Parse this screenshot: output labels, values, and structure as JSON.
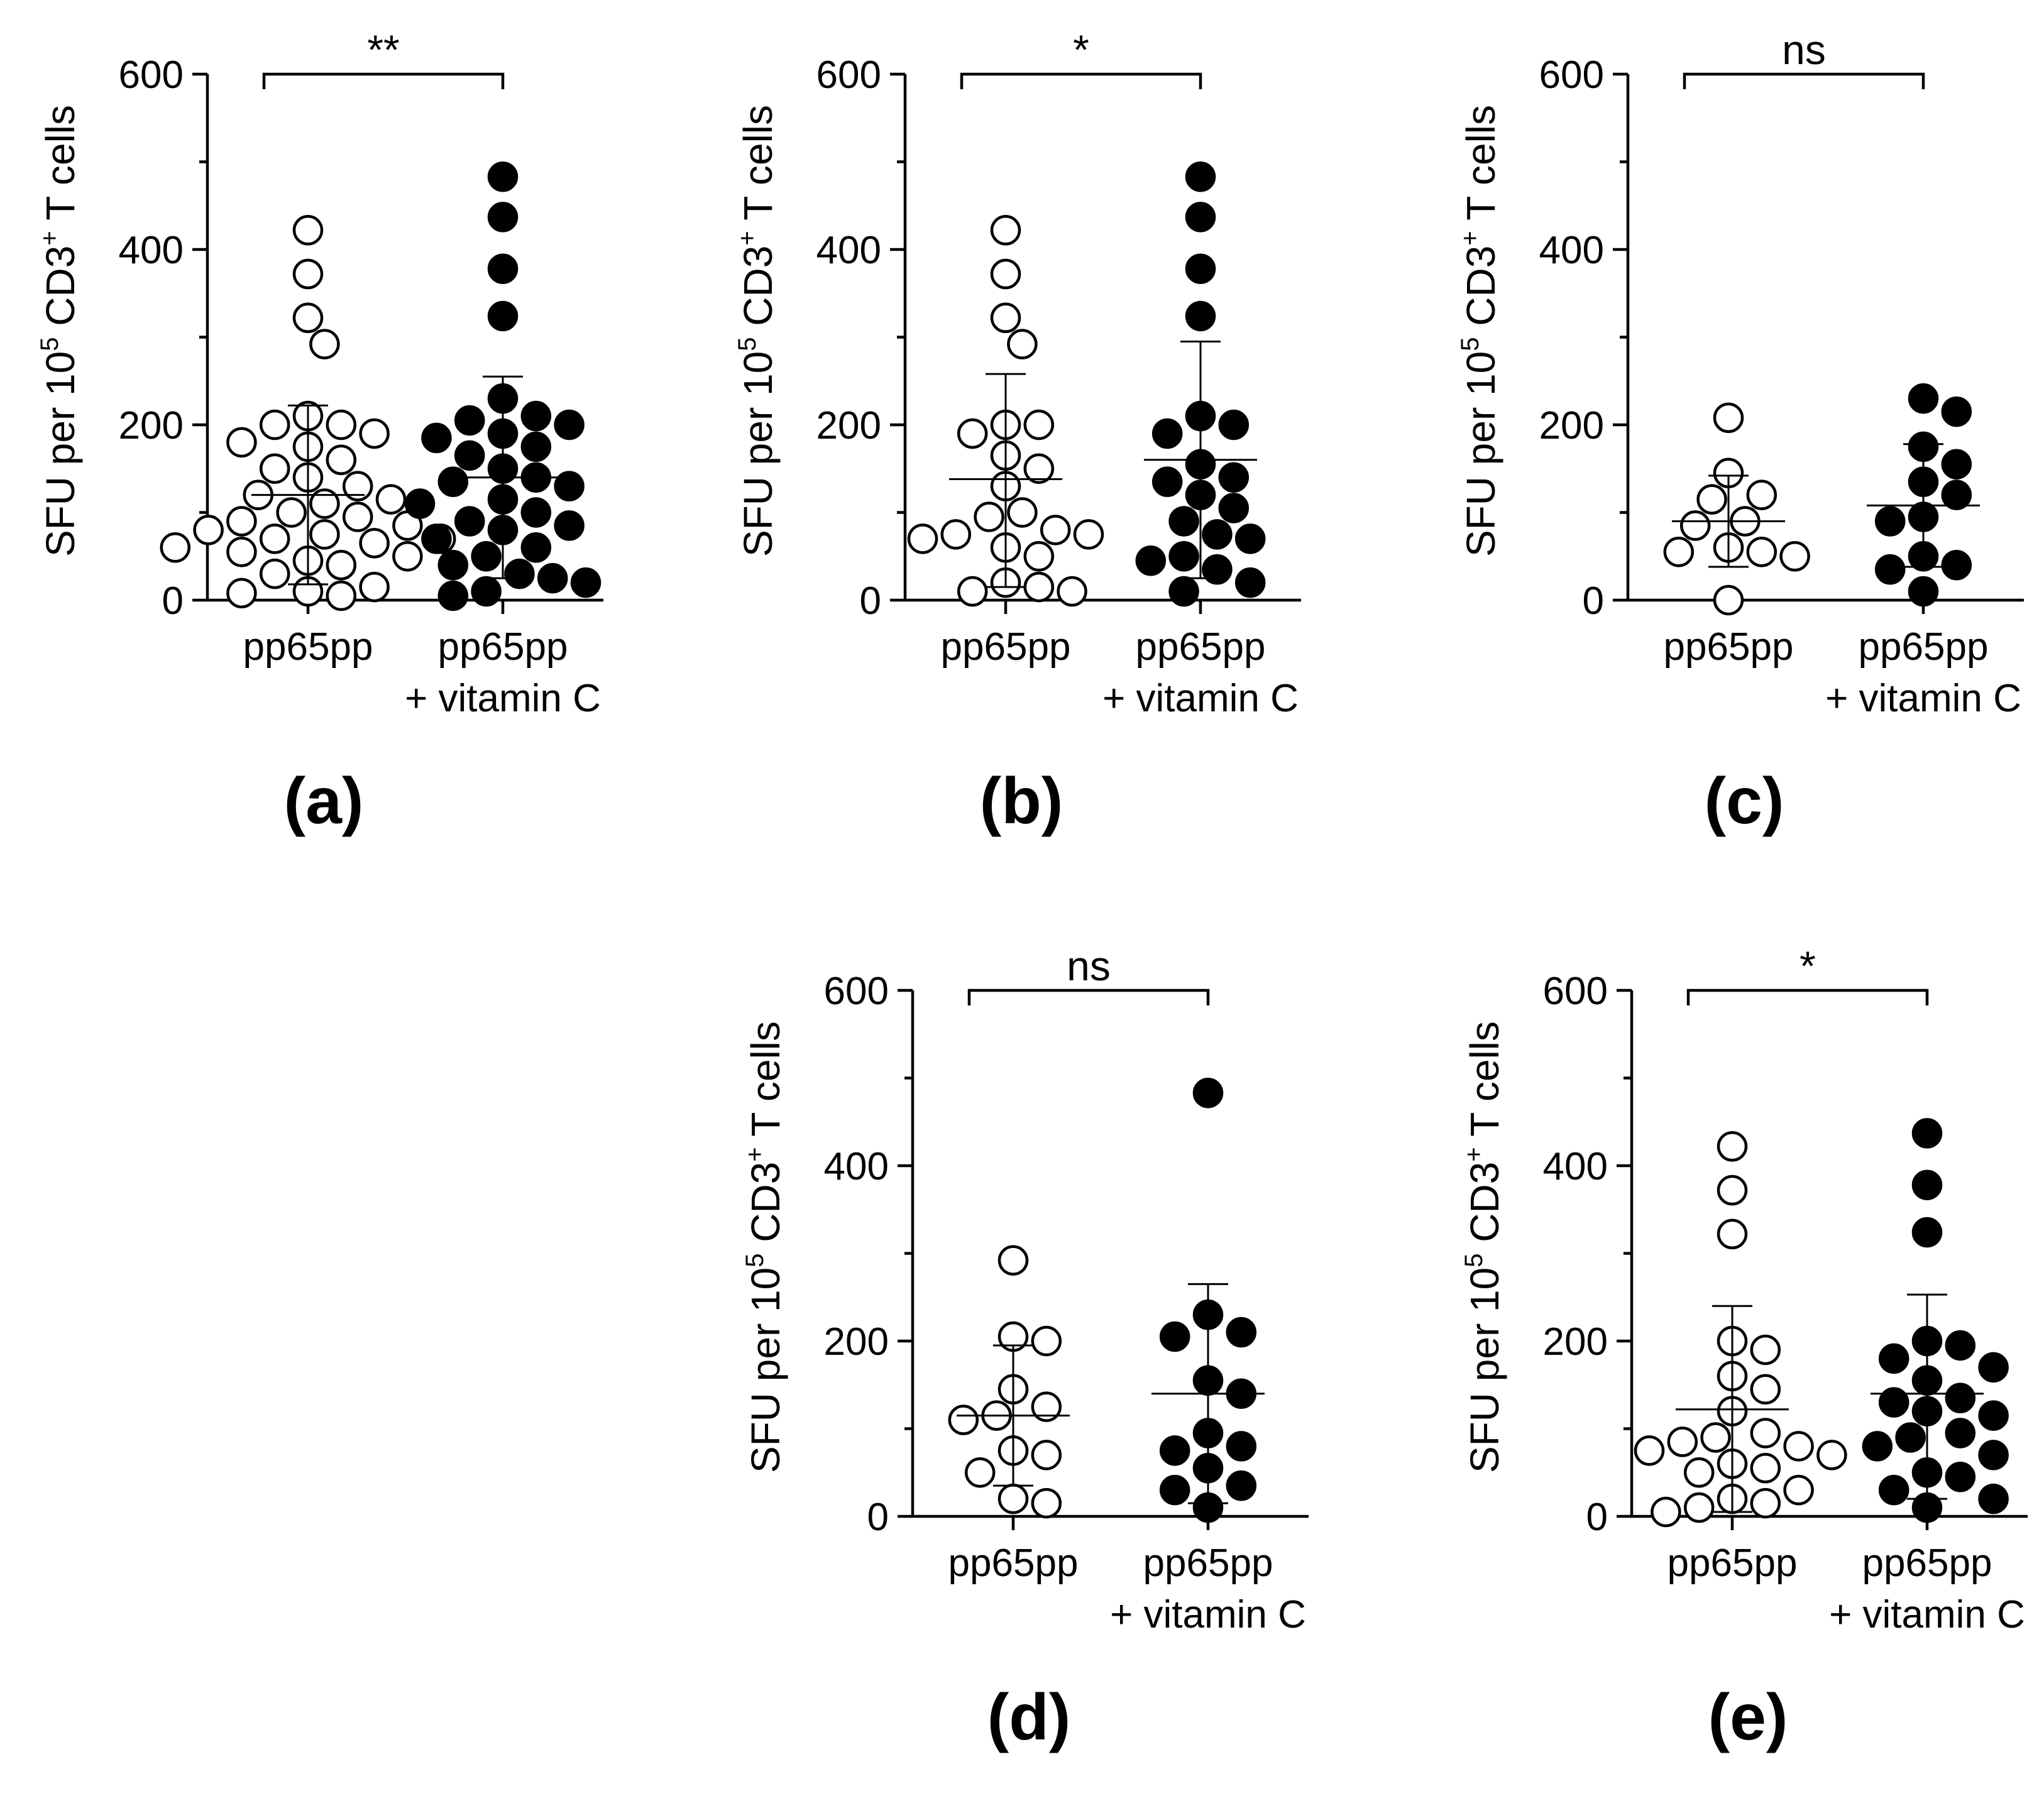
{
  "chart_data": [
    {
      "type": "scatter",
      "panel_label": "(a)",
      "ylabel": {
        "prefix": "SFU per 10",
        "sup1": "5",
        "middle": " CD3",
        "sup2": "+",
        "suffix": " T cells"
      },
      "ylim": [
        0,
        600
      ],
      "yticks": [
        0,
        200,
        400,
        600
      ],
      "categories": [
        "pp65pp",
        "pp65pp",
        "+ vitamin C"
      ],
      "category_lines": [
        [
          "pp65pp"
        ],
        [
          "pp65pp",
          "+ vitamin C"
        ]
      ],
      "significance": "**",
      "series": [
        {
          "name": "pp65pp",
          "marker": "open",
          "mean": 120,
          "sd_low": 18,
          "sd_high": 222,
          "values": [
            422,
            372,
            322,
            292,
            210,
            200,
            200,
            190,
            180,
            175,
            160,
            150,
            140,
            130,
            120,
            115,
            110,
            100,
            95,
            90,
            85,
            80,
            75,
            70,
            70,
            65,
            60,
            55,
            50,
            45,
            40,
            30,
            15,
            10,
            8,
            5
          ]
        },
        {
          "name": "pp65pp + vitamin C",
          "marker": "filled",
          "mean": 140,
          "sd_low": 25,
          "sd_high": 255,
          "values": [
            483,
            437,
            378,
            324,
            230,
            210,
            205,
            200,
            190,
            185,
            175,
            165,
            150,
            140,
            135,
            130,
            115,
            110,
            100,
            90,
            85,
            80,
            70,
            60,
            50,
            40,
            30,
            25,
            20,
            10,
            5
          ]
        }
      ]
    },
    {
      "type": "scatter",
      "panel_label": "(b)",
      "ylabel": {
        "prefix": "SFU per 10",
        "sup1": "5",
        "middle": " CD3",
        "sup2": "+",
        "suffix": " T cells"
      },
      "ylim": [
        0,
        600
      ],
      "yticks": [
        0,
        200,
        400,
        600
      ],
      "categories": [
        "pp65pp",
        "pp65pp",
        "+ vitamin C"
      ],
      "category_lines": [
        [
          "pp65pp"
        ],
        [
          "pp65pp",
          "+ vitamin C"
        ]
      ],
      "significance": "*",
      "series": [
        {
          "name": "pp65pp",
          "marker": "open",
          "mean": 138,
          "sd_low": 15,
          "sd_high": 258,
          "values": [
            422,
            372,
            322,
            292,
            200,
            200,
            190,
            165,
            150,
            130,
            100,
            95,
            80,
            75,
            75,
            70,
            60,
            50,
            20,
            15,
            10,
            10
          ]
        },
        {
          "name": "pp65pp + vitamin C",
          "marker": "filled",
          "mean": 160,
          "sd_low": 25,
          "sd_high": 295,
          "values": [
            483,
            437,
            378,
            324,
            210,
            200,
            190,
            155,
            140,
            135,
            120,
            105,
            90,
            75,
            70,
            50,
            45,
            35,
            20,
            10
          ]
        }
      ]
    },
    {
      "type": "scatter",
      "panel_label": "(c)",
      "ylabel": {
        "prefix": "SFU per 10",
        "sup1": "5",
        "middle": " CD3",
        "sup2": "+",
        "suffix": " T cells"
      },
      "ylim": [
        0,
        600
      ],
      "yticks": [
        0,
        200,
        400,
        600
      ],
      "categories": [
        "pp65pp",
        "pp65pp",
        "+ vitamin C"
      ],
      "category_lines": [
        [
          "pp65pp"
        ],
        [
          "pp65pp",
          "+ vitamin C"
        ]
      ],
      "significance": "ns",
      "series": [
        {
          "name": "pp65pp",
          "marker": "open",
          "mean": 90,
          "sd_low": 38,
          "sd_high": 142,
          "values": [
            208,
            145,
            120,
            115,
            90,
            85,
            60,
            55,
            55,
            50,
            0
          ]
        },
        {
          "name": "pp65pp + vitamin C",
          "marker": "filled",
          "mean": 108,
          "sd_low": 38,
          "sd_high": 178,
          "values": [
            230,
            215,
            175,
            155,
            135,
            120,
            95,
            90,
            50,
            40,
            35,
            10
          ]
        }
      ]
    },
    {
      "type": "scatter",
      "panel_label": "(d)",
      "ylabel": {
        "prefix": "SFU per 10",
        "sup1": "5",
        "middle": " CD3",
        "sup2": "+",
        "suffix": " T cells"
      },
      "ylim": [
        0,
        600
      ],
      "yticks": [
        0,
        200,
        400,
        600
      ],
      "categories": [
        "pp65pp",
        "pp65pp",
        "+ vitamin C"
      ],
      "category_lines": [
        [
          "pp65pp"
        ],
        [
          "pp65pp",
          "+ vitamin C"
        ]
      ],
      "significance": "ns",
      "series": [
        {
          "name": "pp65pp",
          "marker": "open",
          "mean": 115,
          "sd_low": 35,
          "sd_high": 195,
          "values": [
            292,
            205,
            200,
            145,
            125,
            115,
            110,
            75,
            70,
            50,
            20,
            15
          ]
        },
        {
          "name": "pp65pp + vitamin C",
          "marker": "filled",
          "mean": 140,
          "sd_low": 15,
          "sd_high": 265,
          "values": [
            483,
            230,
            210,
            205,
            155,
            140,
            95,
            80,
            75,
            55,
            35,
            30,
            10
          ]
        }
      ]
    },
    {
      "type": "scatter",
      "panel_label": "(e)",
      "ylabel": {
        "prefix": "SFU per 10",
        "sup1": "5",
        "middle": " CD3",
        "sup2": "+",
        "suffix": " T cells"
      },
      "ylim": [
        0,
        600
      ],
      "yticks": [
        0,
        200,
        400,
        600
      ],
      "categories": [
        "pp65pp",
        "pp65pp",
        "+ vitamin C"
      ],
      "category_lines": [
        [
          "pp65pp"
        ],
        [
          "pp65pp",
          "+ vitamin C"
        ]
      ],
      "significance": "*",
      "series": [
        {
          "name": "pp65pp",
          "marker": "open",
          "mean": 122,
          "sd_low": 5,
          "sd_high": 240,
          "values": [
            422,
            372,
            322,
            200,
            190,
            160,
            145,
            120,
            95,
            90,
            85,
            80,
            75,
            70,
            60,
            55,
            50,
            30,
            20,
            15,
            10,
            5
          ]
        },
        {
          "name": "pp65pp + vitamin C",
          "marker": "filled",
          "mean": 140,
          "sd_low": 20,
          "sd_high": 253,
          "values": [
            437,
            378,
            324,
            200,
            195,
            180,
            170,
            155,
            135,
            130,
            120,
            115,
            95,
            90,
            80,
            70,
            50,
            45,
            30,
            20,
            10
          ]
        }
      ]
    }
  ]
}
